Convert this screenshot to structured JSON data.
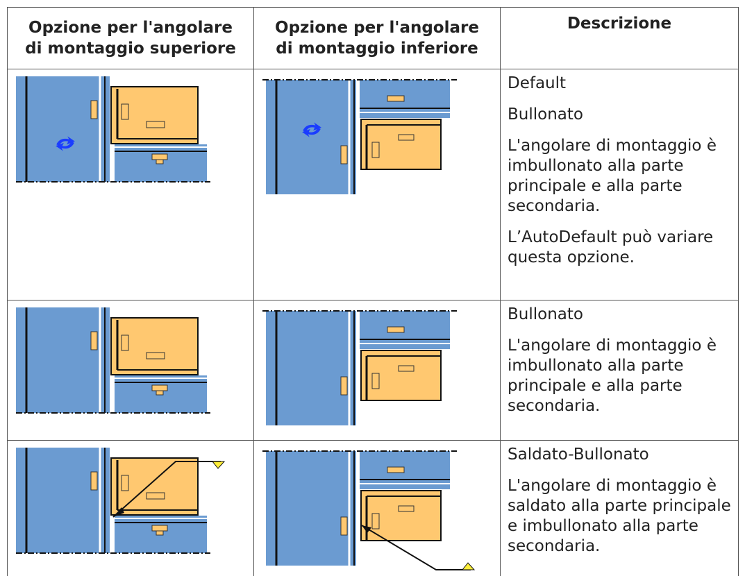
{
  "table": {
    "header": [
      [
        "Opzione per l'angolare",
        "di montaggio superiore"
      ],
      [
        "Opzione per l'angolare",
        "di montaggio inferiore"
      ],
      [
        "Descrizione"
      ]
    ],
    "rows": [
      {
        "description": [
          "Default",
          "Bullonato",
          "L'angolare di montaggio è imbullonato alla parte principale e alla parte secondaria.",
          "L’AutoDefault può variare questa opzione."
        ]
      },
      {
        "description": [
          "Bullonato",
          "L'angolare di montaggio è imbullonato alla parte principale e alla parte secondaria."
        ]
      },
      {
        "description": [
          "Saldato-Bullonato",
          "L'angolare di montaggio è saldato alla parte principale e imbullonato alla parte secondaria."
        ]
      }
    ]
  }
}
